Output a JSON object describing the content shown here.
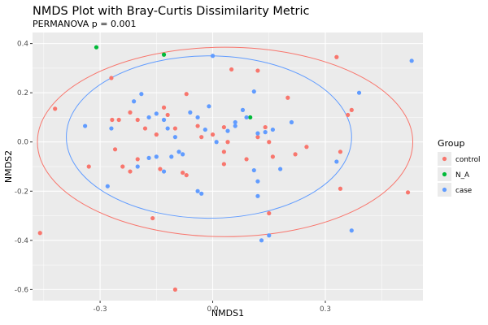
{
  "chart_data": {
    "type": "scatter",
    "title": "NMDS Plot with Bray-Curtis Dissimilarity Metric",
    "subtitle": "PERMANOVA p = 0.001",
    "xlabel": "NMDS1",
    "ylabel": "NMDS2",
    "xlim": [
      -0.48,
      0.56
    ],
    "ylim": [
      -0.645,
      0.445
    ],
    "x_ticks": [
      -0.3,
      0.0,
      0.3
    ],
    "x_tick_labels": [
      "-0.3",
      "0.0",
      "0.3"
    ],
    "y_ticks": [
      0.4,
      0.2,
      0.0,
      -0.2,
      -0.4,
      -0.6
    ],
    "y_tick_labels": [
      "0.4",
      "0.2",
      "0.0",
      "-0.2",
      "-0.4",
      "-0.6"
    ],
    "grid": true,
    "legend": {
      "title": "Group",
      "position": "right",
      "entries": [
        {
          "label": "control",
          "color": "#F8766D"
        },
        {
          "label": "N_A",
          "color": "#00BA38"
        },
        {
          "label": "case",
          "color": "#619CFF"
        }
      ]
    },
    "series": [
      {
        "name": "control",
        "color": "#F8766D",
        "points": [
          [
            -0.42,
            0.135
          ],
          [
            -0.27,
            0.26
          ],
          [
            -0.268,
            0.09
          ],
          [
            -0.22,
            0.12
          ],
          [
            -0.2,
            0.09
          ],
          [
            -0.22,
            -0.12
          ],
          [
            -0.25,
            0.09
          ],
          [
            -0.15,
            0.03
          ],
          [
            -0.18,
            0.055
          ],
          [
            -0.1,
            0.055
          ],
          [
            -0.07,
            0.195
          ],
          [
            -0.13,
            0.14
          ],
          [
            -0.04,
            0.065
          ],
          [
            -0.03,
            0.02
          ],
          [
            0.0,
            0.03
          ],
          [
            0.03,
            0.06
          ],
          [
            0.04,
            0.0
          ],
          [
            0.03,
            -0.04
          ],
          [
            0.05,
            0.295
          ],
          [
            0.09,
            -0.07
          ],
          [
            0.12,
            0.29
          ],
          [
            0.12,
            0.02
          ],
          [
            0.14,
            0.06
          ],
          [
            0.15,
            0.0
          ],
          [
            0.16,
            -0.06
          ],
          [
            0.2,
            0.18
          ],
          [
            0.22,
            -0.05
          ],
          [
            0.25,
            -0.02
          ],
          [
            0.33,
            0.345
          ],
          [
            0.34,
            -0.04
          ],
          [
            0.34,
            -0.19
          ],
          [
            0.36,
            0.11
          ],
          [
            0.37,
            0.13
          ],
          [
            0.52,
            -0.205
          ],
          [
            -0.33,
            -0.1
          ],
          [
            -0.24,
            -0.1
          ],
          [
            -0.2,
            -0.07
          ],
          [
            -0.12,
            0.11
          ],
          [
            -0.14,
            -0.11
          ],
          [
            -0.08,
            -0.125
          ],
          [
            -0.07,
            -0.135
          ],
          [
            -0.16,
            -0.31
          ],
          [
            -0.1,
            -0.6
          ],
          [
            -0.46,
            -0.37
          ],
          [
            0.15,
            -0.29
          ],
          [
            0.03,
            -0.09
          ],
          [
            -0.26,
            -0.03
          ]
        ]
      },
      {
        "name": "N_A",
        "color": "#00BA38",
        "points": [
          [
            -0.31,
            0.385
          ],
          [
            -0.13,
            0.355
          ],
          [
            0.1,
            0.1
          ]
        ]
      },
      {
        "name": "case",
        "color": "#619CFF",
        "points": [
          [
            -0.34,
            0.065
          ],
          [
            -0.27,
            0.055
          ],
          [
            -0.21,
            0.165
          ],
          [
            -0.19,
            0.195
          ],
          [
            -0.15,
            0.115
          ],
          [
            -0.13,
            0.09
          ],
          [
            -0.12,
            0.055
          ],
          [
            -0.1,
            0.02
          ],
          [
            -0.08,
            -0.05
          ],
          [
            -0.06,
            0.12
          ],
          [
            -0.04,
            0.1
          ],
          [
            -0.02,
            0.05
          ],
          [
            -0.01,
            0.145
          ],
          [
            0.0,
            0.35
          ],
          [
            0.04,
            0.045
          ],
          [
            0.06,
            0.065
          ],
          [
            0.08,
            0.13
          ],
          [
            0.09,
            0.1
          ],
          [
            0.11,
            0.205
          ],
          [
            0.12,
            0.035
          ],
          [
            0.14,
            0.04
          ],
          [
            0.16,
            0.05
          ],
          [
            0.18,
            -0.11
          ],
          [
            0.21,
            0.08
          ],
          [
            0.33,
            -0.08
          ],
          [
            0.37,
            -0.36
          ],
          [
            0.39,
            0.2
          ],
          [
            0.53,
            0.33
          ],
          [
            -0.28,
            -0.18
          ],
          [
            -0.2,
            -0.1
          ],
          [
            -0.17,
            -0.065
          ],
          [
            -0.15,
            -0.06
          ],
          [
            -0.13,
            -0.12
          ],
          [
            -0.11,
            -0.06
          ],
          [
            -0.09,
            -0.04
          ],
          [
            -0.04,
            -0.2
          ],
          [
            -0.03,
            -0.21
          ],
          [
            0.12,
            -0.22
          ],
          [
            0.12,
            -0.16
          ],
          [
            0.13,
            -0.4
          ],
          [
            0.15,
            -0.38
          ],
          [
            0.11,
            -0.115
          ],
          [
            -0.17,
            0.1
          ],
          [
            0.06,
            0.08
          ],
          [
            0.01,
            0.0
          ]
        ]
      }
    ],
    "ellipses": [
      {
        "group": "control",
        "color": "#F8766D",
        "cx": 0.033,
        "cy": 0.0,
        "rx": 0.5,
        "ry": 0.385
      },
      {
        "group": "case",
        "color": "#619CFF",
        "cx": -0.01,
        "cy": 0.02,
        "rx": 0.38,
        "ry": 0.33
      }
    ]
  }
}
